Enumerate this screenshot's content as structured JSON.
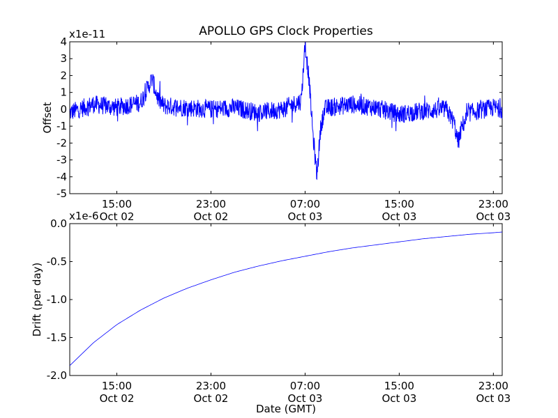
{
  "chart_data": [
    {
      "type": "line",
      "title": "APOLLO GPS Clock Properties",
      "ylabel": "Offset",
      "xlabel": "",
      "y_multiplier_label": "x1e-11",
      "ylim": [
        -5,
        4
      ],
      "yticks": [
        "-5",
        "-4",
        "-3",
        "-2",
        "-1",
        "0",
        "1",
        "2",
        "3",
        "4"
      ],
      "xlim": [
        "2012-10-02 11:00",
        "2012-10-03 23:45"
      ],
      "xticks": [
        {
          "time": "2012-10-02 15:00",
          "line1": "15:00",
          "line2": "Oct 02"
        },
        {
          "time": "2012-10-02 23:00",
          "line1": "23:00",
          "line2": "Oct 02"
        },
        {
          "time": "2012-10-03 07:00",
          "line1": "07:00",
          "line2": "Oct 03"
        },
        {
          "time": "2012-10-03 15:00",
          "line1": "15:00",
          "line2": "Oct 03"
        },
        {
          "time": "2012-10-03 23:00",
          "line1": "23:00",
          "line2": "Oct 03"
        }
      ],
      "series_color": "#0000ff",
      "series": [
        {
          "x": [
            "2012-10-02 11:00",
            "2012-10-02 13:00",
            "2012-10-02 15:00",
            "2012-10-02 17:00",
            "2012-10-02 18:00",
            "2012-10-02 18:30",
            "2012-10-02 19:00",
            "2012-10-02 21:00",
            "2012-10-02 23:00",
            "2012-10-03 01:00",
            "2012-10-03 03:00",
            "2012-10-03 05:00",
            "2012-10-03 06:00",
            "2012-10-03 06:40",
            "2012-10-03 07:00",
            "2012-10-03 07:20",
            "2012-10-03 07:40",
            "2012-10-03 08:00",
            "2012-10-03 08:20",
            "2012-10-03 08:40",
            "2012-10-03 09:00",
            "2012-10-03 11:00",
            "2012-10-03 13:00",
            "2012-10-03 15:00",
            "2012-10-03 17:00",
            "2012-10-03 19:00",
            "2012-10-03 19:40",
            "2012-10-03 20:00",
            "2012-10-03 20:20",
            "2012-10-03 21:00",
            "2012-10-03 23:00",
            "2012-10-03 23:45"
          ],
          "y": [
            -0.2,
            0.3,
            0.1,
            0.4,
            1.8,
            0.6,
            0.2,
            0.1,
            0.0,
            0.1,
            -0.2,
            0.0,
            0.3,
            0.5,
            3.9,
            1.8,
            -1.5,
            -3.9,
            -1.0,
            0.0,
            0.1,
            0.3,
            0.1,
            -0.3,
            -0.1,
            0.0,
            -0.8,
            -2.0,
            -1.0,
            -0.2,
            0.1,
            0.0
          ]
        }
      ]
    },
    {
      "type": "line",
      "title": "",
      "ylabel": "Drift (per day)",
      "xlabel": "Date (GMT)",
      "y_multiplier_label": "x1e-6",
      "ylim": [
        -2.0,
        0.0
      ],
      "yticks": [
        "-2.0",
        "-1.5",
        "-1.0",
        "-0.5",
        "0.0"
      ],
      "xlim": [
        "2012-10-02 11:00",
        "2012-10-03 23:45"
      ],
      "xticks": [
        {
          "time": "2012-10-02 15:00",
          "line1": "15:00",
          "line2": "Oct 02"
        },
        {
          "time": "2012-10-02 23:00",
          "line1": "23:00",
          "line2": "Oct 02"
        },
        {
          "time": "2012-10-03 07:00",
          "line1": "07:00",
          "line2": "Oct 03"
        },
        {
          "time": "2012-10-03 15:00",
          "line1": "15:00",
          "line2": "Oct 03"
        },
        {
          "time": "2012-10-03 23:00",
          "line1": "23:00",
          "line2": "Oct 03"
        }
      ],
      "series_color": "#0000ff",
      "series": [
        {
          "x": [
            "2012-10-02 11:00",
            "2012-10-02 13:00",
            "2012-10-02 15:00",
            "2012-10-02 17:00",
            "2012-10-02 19:00",
            "2012-10-02 21:00",
            "2012-10-02 23:00",
            "2012-10-03 01:00",
            "2012-10-03 03:00",
            "2012-10-03 05:00",
            "2012-10-03 07:00",
            "2012-10-03 09:00",
            "2012-10-03 11:00",
            "2012-10-03 13:00",
            "2012-10-03 15:00",
            "2012-10-03 17:00",
            "2012-10-03 19:00",
            "2012-10-03 21:00",
            "2012-10-03 23:00",
            "2012-10-03 23:45"
          ],
          "y": [
            -1.87,
            -1.57,
            -1.33,
            -1.14,
            -0.98,
            -0.85,
            -0.74,
            -0.64,
            -0.56,
            -0.49,
            -0.43,
            -0.37,
            -0.32,
            -0.28,
            -0.24,
            -0.2,
            -0.17,
            -0.14,
            -0.12,
            -0.11
          ]
        }
      ]
    }
  ]
}
